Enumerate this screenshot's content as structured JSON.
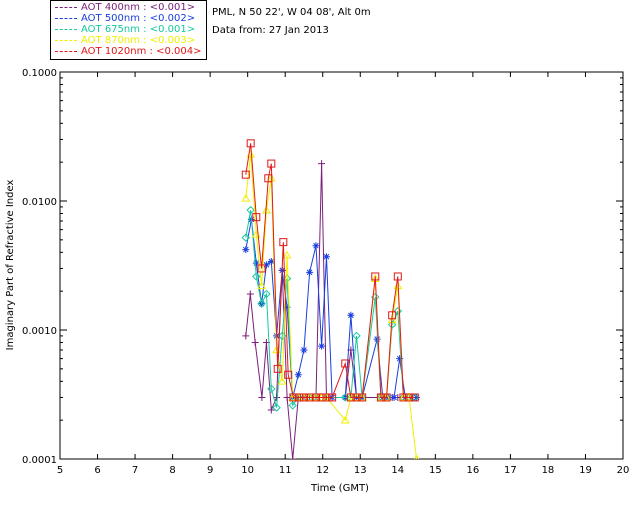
{
  "header": {
    "site": "PML, N 50 22', W 04 08', Alt 0m",
    "date": "Data from: 27 Jan 2013"
  },
  "chart_data": {
    "type": "line",
    "title": "",
    "xlabel": "Time (GMT)",
    "ylabel": "Imaginary Part of Refractive Index",
    "xlim": [
      5,
      20
    ],
    "ylim": [
      0.0001,
      0.1
    ],
    "yscale": "log",
    "xticks": [
      5,
      6,
      7,
      8,
      9,
      10,
      11,
      12,
      13,
      14,
      15,
      16,
      17,
      18,
      19,
      20
    ],
    "yticks": [
      "0.0001",
      "0.0010",
      "0.0100",
      "0.1000"
    ],
    "legend_position": "top-left, outside plot",
    "series": [
      {
        "name": "AOT  400nm : <0.001>",
        "color": "#7a1f7a",
        "marker": "plus",
        "x": [
          9.95,
          10.07,
          10.2,
          10.38,
          10.5,
          10.63,
          10.77,
          10.92,
          11.05,
          11.2,
          11.35,
          11.5,
          11.65,
          11.82,
          11.97,
          12.1,
          12.25,
          12.6,
          12.75,
          12.9,
          13.05,
          13.5,
          13.68,
          13.85,
          14.0,
          14.2,
          14.4
        ],
        "y": [
          0.0009,
          0.0019,
          0.0008,
          0.0003,
          0.0008,
          0.00024,
          0.0003,
          0.0029,
          0.0003,
          0.0001,
          0.0003,
          0.0003,
          0.0003,
          0.0003,
          0.0195,
          0.0003,
          0.0003,
          0.0003,
          0.0007,
          0.0003,
          0.0003,
          0.0003,
          0.0003,
          0.0003,
          0.0003,
          0.0003,
          0.0003
        ]
      },
      {
        "name": "AOT  500nm : <0.002>",
        "color": "#1a3fe0",
        "marker": "star",
        "x": [
          9.95,
          10.1,
          10.23,
          10.37,
          10.5,
          10.63,
          10.77,
          10.92,
          11.05,
          11.2,
          11.35,
          11.5,
          11.65,
          11.82,
          11.97,
          12.1,
          12.25,
          12.6,
          12.75,
          12.9,
          13.05,
          13.45,
          13.6,
          13.75,
          13.9,
          14.05,
          14.2,
          14.35,
          14.5
        ],
        "y": [
          0.0042,
          0.0072,
          0.0033,
          0.0016,
          0.0032,
          0.0034,
          0.0009,
          0.0029,
          0.0015,
          0.0003,
          0.00045,
          0.0007,
          0.0028,
          0.0045,
          0.00075,
          0.0037,
          0.0003,
          0.0003,
          0.0013,
          0.0003,
          0.0003,
          0.00085,
          0.0003,
          0.0003,
          0.0003,
          0.0006,
          0.0003,
          0.0003,
          0.0003
        ]
      },
      {
        "name": "AOT  675nm : <0.001>",
        "color": "#18c8a0",
        "marker": "diamond",
        "x": [
          9.95,
          10.08,
          10.23,
          10.37,
          10.5,
          10.63,
          10.77,
          10.92,
          11.05,
          11.2,
          11.35,
          11.5,
          11.65,
          11.82,
          11.97,
          12.1,
          12.6,
          12.75,
          12.9,
          13.05,
          13.4,
          13.55,
          13.7,
          13.85,
          14.0,
          14.15,
          14.3,
          14.45
        ],
        "y": [
          0.0052,
          0.0085,
          0.0026,
          0.0016,
          0.0019,
          0.00035,
          0.00025,
          0.0009,
          0.0025,
          0.00026,
          0.0003,
          0.0003,
          0.0003,
          0.0003,
          0.0003,
          0.0003,
          0.0003,
          0.0003,
          0.0009,
          0.0003,
          0.0018,
          0.0003,
          0.0003,
          0.0011,
          0.0014,
          0.0003,
          0.0003,
          0.0003
        ]
      },
      {
        "name": "AOT  870nm : <0.003>",
        "color": "#f0f000",
        "marker": "triangle",
        "x": [
          9.95,
          10.08,
          10.23,
          10.37,
          10.5,
          10.63,
          10.77,
          10.92,
          11.05,
          11.2,
          11.35,
          11.5,
          11.65,
          11.82,
          11.97,
          12.1,
          12.6,
          12.75,
          12.9,
          13.05,
          13.4,
          13.55,
          13.7,
          13.85,
          14.0,
          14.15,
          14.3,
          14.5
        ],
        "y": [
          0.0105,
          0.023,
          0.0055,
          0.0022,
          0.0085,
          0.015,
          0.0007,
          0.0004,
          0.0038,
          0.0003,
          0.0003,
          0.0003,
          0.0003,
          0.0003,
          0.0003,
          0.0003,
          0.0002,
          0.0003,
          0.0003,
          0.0003,
          0.0025,
          0.0003,
          0.0003,
          0.0012,
          0.0022,
          0.0003,
          0.0003,
          0.0001
        ]
      },
      {
        "name": "AOT 1020nm : <0.004>",
        "color": "#e01818",
        "marker": "square",
        "x": [
          9.95,
          10.08,
          10.23,
          10.37,
          10.55,
          10.63,
          10.8,
          10.95,
          11.08,
          11.22,
          11.37,
          11.5,
          11.65,
          11.82,
          11.97,
          12.1,
          12.25,
          12.6,
          12.75,
          12.9,
          13.05,
          13.4,
          13.55,
          13.7,
          13.85,
          14.0,
          14.15,
          14.3,
          14.45
        ],
        "y": [
          0.016,
          0.028,
          0.0075,
          0.003,
          0.015,
          0.0195,
          0.0005,
          0.0048,
          0.00045,
          0.0003,
          0.0003,
          0.0003,
          0.0003,
          0.0003,
          0.0003,
          0.0003,
          0.0003,
          0.00055,
          0.0003,
          0.0003,
          0.0003,
          0.0026,
          0.0003,
          0.0003,
          0.0013,
          0.0026,
          0.0003,
          0.0003,
          0.0003
        ]
      }
    ]
  }
}
